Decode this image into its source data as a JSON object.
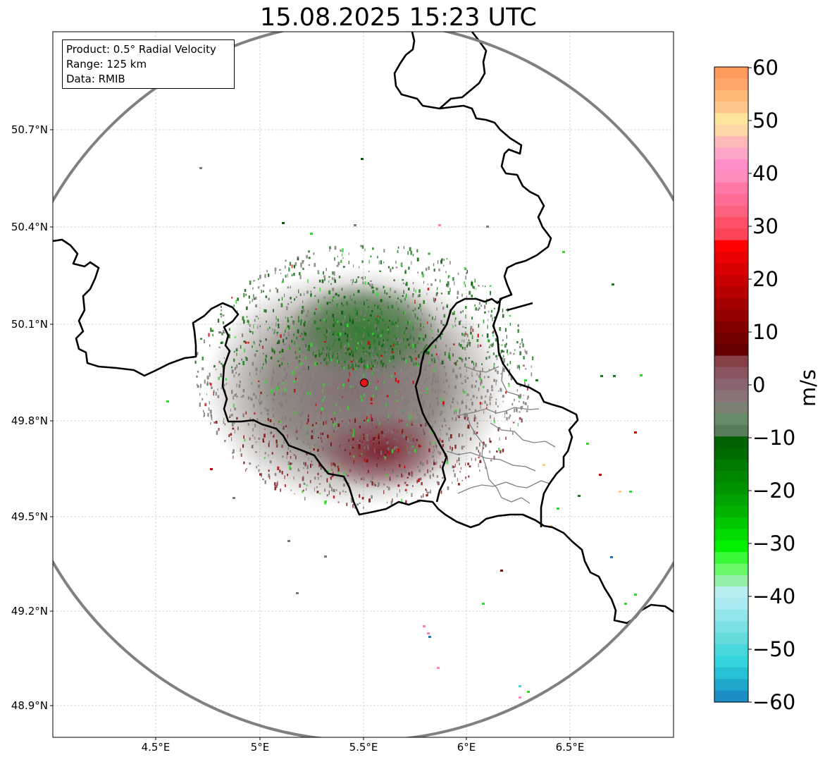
{
  "title": "15.08.2025 15:23 UTC",
  "info_box": {
    "product": "Product: 0.5° Radial Velocity",
    "range": "Range: 125 km",
    "data": "Data: RMIB"
  },
  "map": {
    "lat_ticks": [
      "50.7°N",
      "50.4°N",
      "50.1°N",
      "49.8°N",
      "49.5°N",
      "49.2°N",
      "48.9°N"
    ],
    "lon_ticks": [
      "4.5°E",
      "5°E",
      "5.5°E",
      "6°E",
      "6.5°E"
    ],
    "radar_site": {
      "lon": 5.505,
      "lat": 49.914,
      "color": "#e8141c"
    },
    "range_ring_km": 125,
    "range_ring_color": "#808080",
    "border_color": "#000000",
    "province_border_color": "#808080"
  },
  "colorbar": {
    "unit": "m/s",
    "min": -60,
    "max": 60,
    "tick_labels": [
      "60",
      "50",
      "40",
      "30",
      "20",
      "10",
      "0",
      "−10",
      "−20",
      "−30",
      "−40",
      "−50",
      "−60"
    ],
    "colors_top_to_bottom": [
      "#fe9a5c",
      "#fea66c",
      "#feb878",
      "#fec68a",
      "#fee59c",
      "#fed6a8",
      "#feb8b8",
      "#fea6c8",
      "#fe8ec8",
      "#fe8cbc",
      "#fe78a8",
      "#fe6c94",
      "#fe6080",
      "#fe5068",
      "#fe4458",
      "#fe0000",
      "#ea0000",
      "#d80000",
      "#c80000",
      "#b80000",
      "#a40000",
      "#940000",
      "#840000",
      "#740000",
      "#640000",
      "#884048",
      "#8a5460",
      "#8a6470",
      "#8a7478",
      "#7c8072",
      "#688a68",
      "#5a7c5a",
      "#006200",
      "#006c00",
      "#007a00",
      "#008800",
      "#009400",
      "#00a400",
      "#00b400",
      "#00c800",
      "#00dc00",
      "#00f000",
      "#38f838",
      "#68f868",
      "#94f0a8",
      "#b8eef0",
      "#a8eaf0",
      "#90e6e8",
      "#7ae0e4",
      "#64dcdc",
      "#48d8dc",
      "#34d4dc",
      "#28c0d4",
      "#20a8cc",
      "#1c8ec6"
    ]
  },
  "legend_palette": {
    "gray": "#7f7a78",
    "green": "#1f7a1f",
    "dark_green": "#0a5a0a",
    "bright_green": "#2edc2e",
    "red": "#cc0000",
    "dark_red": "#7a0a0a",
    "pink": "#fe7fbf",
    "cyan": "#40d8e0",
    "orange": "#fecc7a",
    "blue": "#2070c0"
  }
}
